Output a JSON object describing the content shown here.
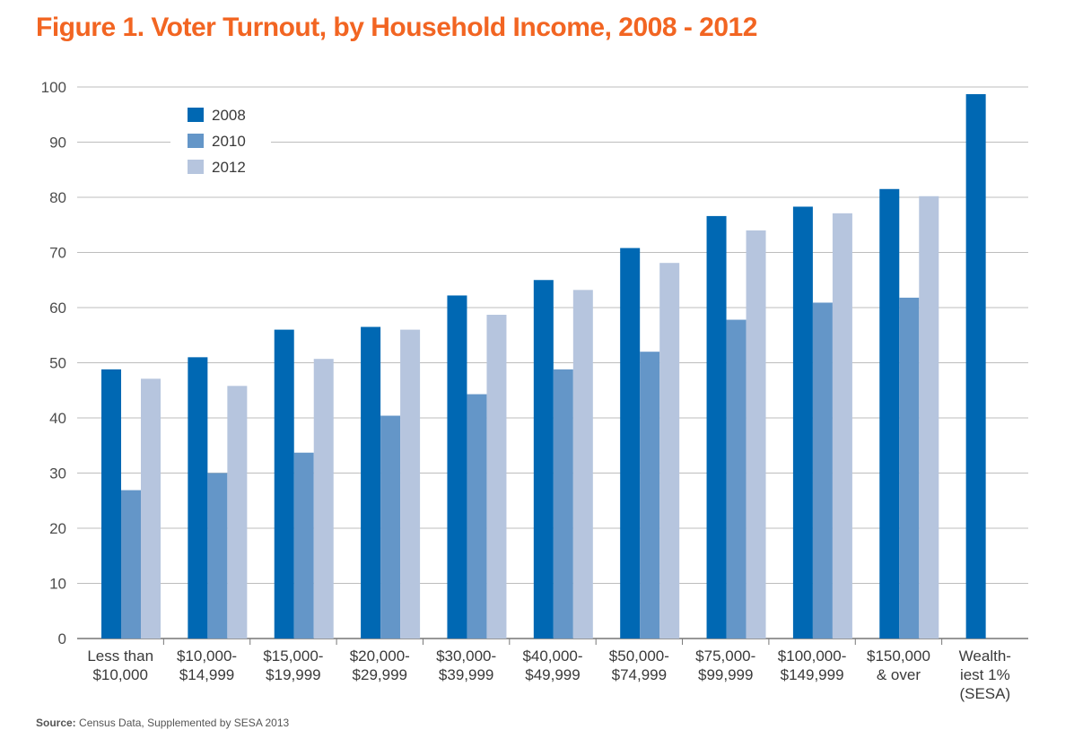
{
  "colors": {
    "title": "#f26522",
    "series": [
      "#0068b3",
      "#6496c8",
      "#b6c5de"
    ],
    "grid": "#bdbdbd",
    "axis": "#777777"
  },
  "source": {
    "label": "Source:",
    "text": "Census Data, Supplemented by SESA 2013"
  },
  "chart_data": {
    "type": "bar",
    "title": "Figure 1. Voter Turnout, by Household Income, 2008 - 2012",
    "xlabel": "",
    "ylabel": "",
    "ylim": [
      0,
      100
    ],
    "yticks": [
      0,
      10,
      20,
      30,
      40,
      50,
      60,
      70,
      80,
      90,
      100
    ],
    "grid": true,
    "legend_position": "top-left",
    "categories": [
      [
        "Less than",
        "$10,000"
      ],
      [
        "$10,000-",
        "$14,999"
      ],
      [
        "$15,000-",
        "$19,999"
      ],
      [
        "$20,000-",
        "$29,999"
      ],
      [
        "$30,000-",
        "$39,999"
      ],
      [
        "$40,000-",
        "$49,999"
      ],
      [
        "$50,000-",
        "$74,999"
      ],
      [
        "$75,000-",
        "$99,999"
      ],
      [
        "$100,000-",
        "$149,999"
      ],
      [
        "$150,000",
        "& over"
      ],
      [
        "Wealth-",
        "iest 1%",
        "(SESA)"
      ]
    ],
    "series": [
      {
        "name": "2008",
        "values": [
          48.8,
          51.0,
          56.0,
          56.5,
          62.2,
          65.0,
          70.8,
          76.6,
          78.3,
          81.5,
          98.7
        ]
      },
      {
        "name": "2010",
        "values": [
          26.9,
          30.0,
          33.7,
          40.4,
          44.3,
          48.8,
          52.0,
          57.8,
          60.9,
          61.8,
          null
        ]
      },
      {
        "name": "2012",
        "values": [
          47.1,
          45.8,
          50.7,
          56.0,
          58.7,
          63.2,
          68.1,
          74.0,
          77.1,
          80.2,
          null
        ]
      }
    ]
  }
}
